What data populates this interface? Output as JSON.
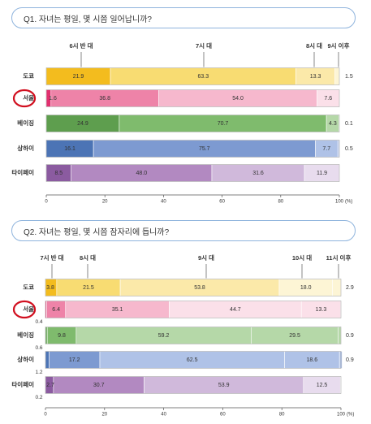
{
  "chart_data": [
    {
      "type": "bar",
      "stacked": true,
      "orientation": "horizontal",
      "title": "Q1. 자녀는 평일, 몇 시쯤 일어납니까?",
      "categories": [
        "도쿄",
        "서울",
        "베이징",
        "상하이",
        "타이페이"
      ],
      "highlight_category": "서울",
      "top_labels": [
        "6시 반 대",
        "7시 대",
        "8시 대",
        "9시 이후"
      ],
      "series": [
        {
          "name": "6시 반 대",
          "values": [
            21.9,
            1.6,
            24.9,
            16.1,
            8.5
          ]
        },
        {
          "name": "7시 대",
          "values": [
            63.3,
            36.8,
            70.7,
            75.7,
            48.0
          ]
        },
        {
          "name": "8시 대",
          "values": [
            13.3,
            54.0,
            4.3,
            7.7,
            31.6
          ]
        },
        {
          "name": "9시 이후",
          "values": [
            1.5,
            7.6,
            0.1,
            0.5,
            11.9
          ]
        }
      ],
      "xlim": [
        0,
        100
      ],
      "xticks": [
        "0",
        "20",
        "40",
        "60",
        "80",
        "100"
      ],
      "xunit": "(%)"
    },
    {
      "type": "bar",
      "stacked": true,
      "orientation": "horizontal",
      "title": "Q2. 자녀는 평일, 몇 시쯤 잠자리에 듭니까?",
      "categories": [
        "도쿄",
        "서울",
        "베이징",
        "상하이",
        "타이페이"
      ],
      "highlight_category": "서울",
      "top_labels": [
        "7시 반 대",
        "8시 대",
        "9시 대",
        "10시 대",
        "11시 이후"
      ],
      "series": [
        {
          "name": "7시 반 대",
          "values": [
            3.8,
            0.4,
            0.6,
            1.2,
            2.7
          ]
        },
        {
          "name": "8시 대",
          "values": [
            21.5,
            6.4,
            9.8,
            17.2,
            30.7
          ]
        },
        {
          "name": "9시 대",
          "values": [
            53.8,
            35.1,
            59.2,
            62.5,
            53.9
          ]
        },
        {
          "name": "10시 대",
          "values": [
            18.0,
            44.7,
            29.5,
            18.6,
            12.5
          ]
        },
        {
          "name": "11시 이후",
          "values": [
            2.9,
            13.3,
            0.9,
            0.9,
            0.2
          ]
        }
      ],
      "value_labels": [
        [
          "3.8",
          "21.5",
          "53.8",
          "18.0",
          "2.9"
        ],
        [
          "",
          "6.4",
          "35.1",
          "44.7",
          "13.3"
        ],
        [
          "",
          "9.8",
          "59.2",
          "29.5",
          "0.9"
        ],
        [
          "",
          "17.2",
          "62.5",
          "18.6",
          "0.9"
        ],
        [
          "2.7",
          "30.7",
          "53.9",
          "12.5",
          ""
        ]
      ],
      "below_labels": [
        "",
        "0.4",
        "0.6",
        "1.2",
        "0.2"
      ],
      "xlim": [
        0,
        100
      ],
      "xticks": [
        "0",
        "20",
        "40",
        "60",
        "80",
        "100"
      ],
      "xunit": "(%)"
    }
  ],
  "colors": {
    "yellow": [
      "#f3bc1e",
      "#f8dc72",
      "#fbe9a9",
      "#fdf5d5"
    ],
    "pink": [
      "#e1306f",
      "#ee83a8",
      "#f6b8cd",
      "#fbe0e9"
    ],
    "green": [
      "#5e9e4e",
      "#7fbb6d",
      "#b5d8a8"
    ],
    "blue": [
      "#4c74b5",
      "#7d9ad1",
      "#afc2e7"
    ],
    "purple": [
      "#8b5ba0",
      "#b289c1",
      "#d0b9db",
      "#e8dcee"
    ],
    "highlight_circle": "#d10f1f",
    "question_border": "#8fb4dd"
  }
}
